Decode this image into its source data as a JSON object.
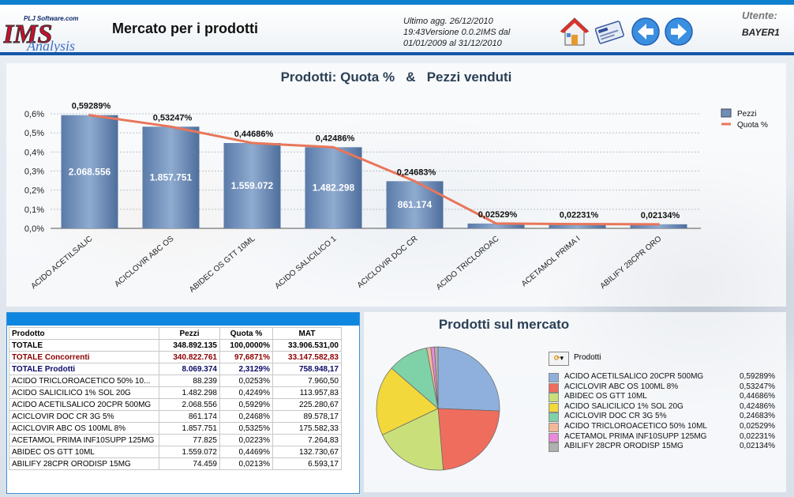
{
  "header": {
    "logo_text": "IMS",
    "logo_sub": "PLJ Software.com",
    "logo_script": "Analysis",
    "title": "Mercato per i prodotti",
    "update_lines": [
      "Ultimo agg. 26/12/2010",
      "19:43Versione 0.0.2IMS dal",
      "01/01/2009 al 31/12/2010"
    ],
    "user_label": "Utente:",
    "user_name": "BAYER1",
    "icons": [
      "home-icon",
      "id-card-icon",
      "back-arrow-icon",
      "forward-arrow-icon"
    ]
  },
  "chart_data": {
    "type": "bar",
    "title_left": "Prodotti: Quota %",
    "title_amp": "&",
    "title_right": "Pezzi venduti",
    "categories": [
      "ACIDO ACETILSALIC",
      "ACICLOVIR ABC OS",
      "ABIDEC OS GTT 10ML",
      "ACIDO SALICILICO 1",
      "ACICLOVIR DOC CR",
      "ACIDO TRICLOROAC",
      "ACETAMOL PRIMA I",
      "ABILIFY 28CPR ORO"
    ],
    "series": [
      {
        "name": "Pezzi",
        "type": "bar",
        "values": [
          2068556,
          1857751,
          1559072,
          1482298,
          861174,
          88239,
          77825,
          74459
        ],
        "labels": [
          "2.068.556",
          "1.857.751",
          "1.559.072",
          "1.482.298",
          "861.174",
          "",
          "",
          ""
        ]
      },
      {
        "name": "Quota %",
        "type": "line",
        "values": [
          0.59289,
          0.53247,
          0.44686,
          0.42486,
          0.24683,
          0.02529,
          0.02231,
          0.02134
        ],
        "labels": [
          "0,59289%",
          "0,53247%",
          "0,44686%",
          "0,42486%",
          "0,24683%",
          "0,02529%",
          "0,02231%",
          "0,02134%"
        ]
      }
    ],
    "y_ticks": [
      "0,0%",
      "0,1%",
      "0,2%",
      "0,3%",
      "0,4%",
      "0,5%",
      "0,6%"
    ],
    "ylim": [
      0,
      0.6
    ],
    "grid": true,
    "legend": "top-right",
    "colors": {
      "bar": "#6f8fb8",
      "line": "#e8765a"
    }
  },
  "table": {
    "columns": [
      "Prodotto",
      "Pezzi",
      "Quota %",
      "MAT"
    ],
    "rows": [
      {
        "style": "bold",
        "cells": [
          "TOTALE",
          "348.892.135",
          "100,0000%",
          "33.906.531,00"
        ]
      },
      {
        "style": "conc",
        "cells": [
          "TOTALE Concorrenti",
          "340.822.761",
          "97,6871%",
          "33.147.582,83"
        ]
      },
      {
        "style": "prod",
        "cells": [
          "TOTALE Prodotti",
          "8.069.374",
          "2,3129%",
          "758.948,17"
        ]
      },
      {
        "style": "",
        "cells": [
          "ACIDO TRICLOROACETICO 50% 10...",
          "88.239",
          "0,0253%",
          "7.960,50"
        ]
      },
      {
        "style": "",
        "cells": [
          "ACIDO SALICILICO 1% SOL 20G",
          "1.482.298",
          "0,4249%",
          "113.957,83"
        ]
      },
      {
        "style": "",
        "cells": [
          "ACIDO ACETILSALICO 20CPR 500MG",
          "2.068.556",
          "0,5929%",
          "225.280,67"
        ]
      },
      {
        "style": "",
        "cells": [
          "ACICLOVIR DOC CR 3G 5%",
          "861.174",
          "0,2468%",
          "89.578,17"
        ]
      },
      {
        "style": "",
        "cells": [
          "ACICLOVIR ABC OS 100ML 8%",
          "1.857.751",
          "0,5325%",
          "175.582,33"
        ]
      },
      {
        "style": "",
        "cells": [
          "ACETAMOL PRIMA INF10SUPP 125MG",
          "77.825",
          "0,0223%",
          "7.264,83"
        ]
      },
      {
        "style": "",
        "cells": [
          "ABIDEC OS GTT 10ML",
          "1.559.072",
          "0,4469%",
          "132.730,67"
        ]
      },
      {
        "style": "",
        "cells": [
          "ABILIFY 28CPR ORODISP 15MG",
          "74.459",
          "0,0213%",
          "6.593,17"
        ]
      }
    ]
  },
  "pie": {
    "title": "Prodotti sul mercato",
    "dropdown_label": "Prodotti",
    "slices": [
      {
        "name": "ACIDO ACETILSALICO 20CPR 500MG",
        "value": 0.59289,
        "label": "0,59289%",
        "color": "#8fb0dc"
      },
      {
        "name": "ACICLOVIR ABC OS 100ML 8%",
        "value": 0.53247,
        "label": "0,53247%",
        "color": "#ef6d5d"
      },
      {
        "name": "ABIDEC OS GTT 10ML",
        "value": 0.44686,
        "label": "0,44686%",
        "color": "#c9e07a"
      },
      {
        "name": "ACIDO SALICILICO 1% SOL 20G",
        "value": 0.42486,
        "label": "0,42486%",
        "color": "#f2d83a"
      },
      {
        "name": "ACICLOVIR DOC CR 3G 5%",
        "value": 0.24683,
        "label": "0,24683%",
        "color": "#7fd1a8"
      },
      {
        "name": "ACIDO TRICLOROACETICO 50% 10ML",
        "value": 0.02529,
        "label": "0,02529%",
        "color": "#f2b898"
      },
      {
        "name": "ACETAMOL PRIMA INF10SUPP 125MG",
        "value": 0.02231,
        "label": "0,02231%",
        "color": "#e88ad8"
      },
      {
        "name": "ABILIFY 28CPR ORODISP 15MG",
        "value": 0.02134,
        "label": "0,02134%",
        "color": "#b0b0b0"
      }
    ]
  }
}
